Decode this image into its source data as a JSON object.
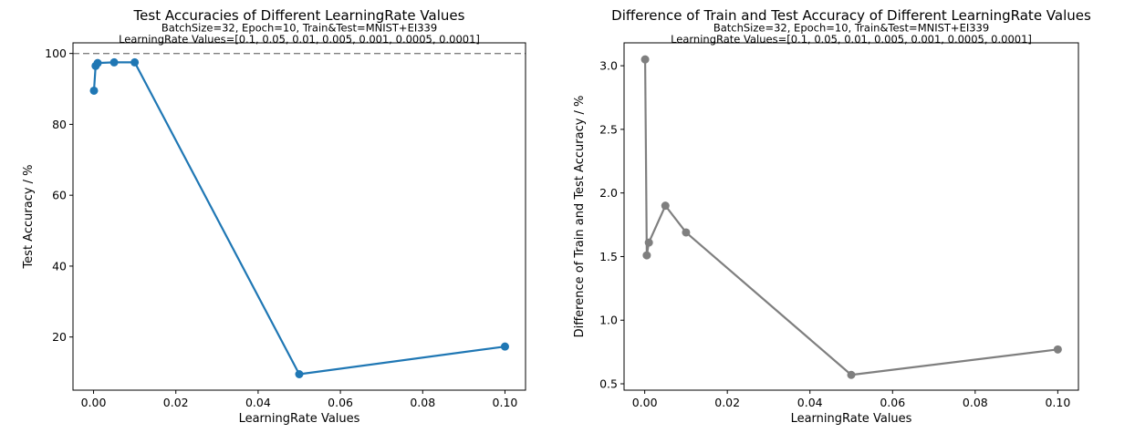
{
  "chart_data": [
    {
      "type": "line",
      "title": "Test Accuracies of Different LearningRate Values",
      "subtitle_lines": [
        "BatchSize=32, Epoch=10, Train&Test=MNIST+EI339",
        "LearningRate Values=[0.1, 0.05, 0.01, 0.005, 0.001, 0.0005, 0.0001]"
      ],
      "xlabel": "LearningRate Values",
      "ylabel": "Test Accuracy / %",
      "xlim": [
        -0.005,
        0.105
      ],
      "ylim": [
        5,
        103
      ],
      "xticks": [
        0.0,
        0.02,
        0.04,
        0.06,
        0.08,
        0.1
      ],
      "xtick_labels": [
        "0.00",
        "0.02",
        "0.04",
        "0.06",
        "0.08",
        "0.10"
      ],
      "yticks": [
        20,
        40,
        60,
        80,
        100
      ],
      "ytick_labels": [
        "20",
        "40",
        "60",
        "80",
        "100"
      ],
      "reference_line": {
        "y": 100,
        "style": "dashed",
        "color": "#808080"
      },
      "series": [
        {
          "color": "#1f77b4",
          "x": [
            0.0001,
            0.0005,
            0.001,
            0.005,
            0.01,
            0.05,
            0.1
          ],
          "y": [
            89.5,
            96.5,
            97.3,
            97.5,
            97.5,
            9.5,
            17.3
          ]
        }
      ]
    },
    {
      "type": "line",
      "title": "Difference of Train and Test Accuracy of Different LearningRate Values",
      "subtitle_lines": [
        "BatchSize=32, Epoch=10, Train&Test=MNIST+EI339",
        "LearningRate Values=[0.1, 0.05, 0.01, 0.005, 0.001, 0.0005, 0.0001]"
      ],
      "xlabel": "LearningRate Values",
      "ylabel": "Difference of Train and Test Accuracy / %",
      "xlim": [
        -0.005,
        0.105
      ],
      "ylim": [
        0.45,
        3.18
      ],
      "xticks": [
        0.0,
        0.02,
        0.04,
        0.06,
        0.08,
        0.1
      ],
      "xtick_labels": [
        "0.00",
        "0.02",
        "0.04",
        "0.06",
        "0.08",
        "0.10"
      ],
      "yticks": [
        0.5,
        1.0,
        1.5,
        2.0,
        2.5,
        3.0
      ],
      "ytick_labels": [
        "0.5",
        "1.0",
        "1.5",
        "2.0",
        "2.5",
        "3.0"
      ],
      "series": [
        {
          "color": "#7f7f7f",
          "x": [
            0.0001,
            0.0005,
            0.001,
            0.005,
            0.01,
            0.05,
            0.1
          ],
          "y": [
            3.05,
            1.51,
            1.61,
            1.9,
            1.69,
            0.57,
            0.77
          ]
        }
      ]
    }
  ]
}
